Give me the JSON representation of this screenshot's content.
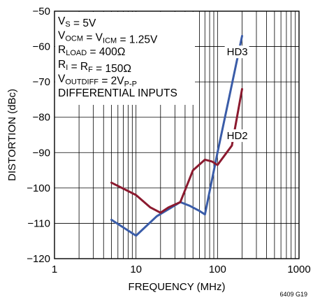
{
  "chart_data": {
    "type": "line",
    "xscale": "log",
    "xlim": [
      1,
      1000
    ],
    "ylim": [
      -120,
      -50
    ],
    "grid": true,
    "xlabel": "FREQUENCY (MHz)",
    "ylabel": "DISTORTION (dBc)",
    "x_ticks": [
      1,
      10,
      100,
      1000
    ],
    "x_tick_labels": [
      "1",
      "10",
      "100",
      "1000"
    ],
    "y_ticks": [
      -50,
      -60,
      -70,
      -80,
      -90,
      -100,
      -110,
      -120
    ],
    "y_tick_labels": [
      "−50",
      "−60",
      "−70",
      "−80",
      "−90",
      "−100",
      "−110",
      "−120"
    ],
    "series": [
      {
        "name": "HD3",
        "color": "#3a5ca8",
        "x": [
          5,
          10,
          18,
          35,
          45,
          60,
          70,
          100,
          140,
          200
        ],
        "y": [
          -109,
          -113.5,
          -108,
          -104,
          -105,
          -106.5,
          -107.5,
          -90,
          -74,
          -57
        ]
      },
      {
        "name": "HD2",
        "color": "#8b1a2f",
        "x": [
          5,
          10,
          15,
          20,
          25,
          35,
          50,
          70,
          85,
          100,
          150,
          200
        ],
        "y": [
          -98.5,
          -102,
          -105.5,
          -107,
          -105.5,
          -104,
          -95,
          -92,
          -92.5,
          -93.5,
          -88,
          -72
        ]
      }
    ],
    "annotations": [
      {
        "main": "V",
        "sub": "S",
        "rest": " = 5V"
      },
      {
        "main": "V",
        "sub": "OCM",
        "mid": " = V",
        "sub2": "ICM",
        "rest": " = 1.25V"
      },
      {
        "main": "R",
        "sub": "LOAD",
        "rest": " = 400Ω"
      },
      {
        "main": "R",
        "sub": "I",
        "mid": " = R",
        "sub2": "F",
        "rest": " = 150Ω"
      },
      {
        "main": "V",
        "sub": "OUTDIFF",
        "mid": " = 2V",
        "sub2": "P-P",
        "rest": ""
      },
      {
        "main": "DIFFERENTIAL INPUTS",
        "sub": "",
        "rest": ""
      }
    ],
    "figure_id": "6409 G19"
  }
}
